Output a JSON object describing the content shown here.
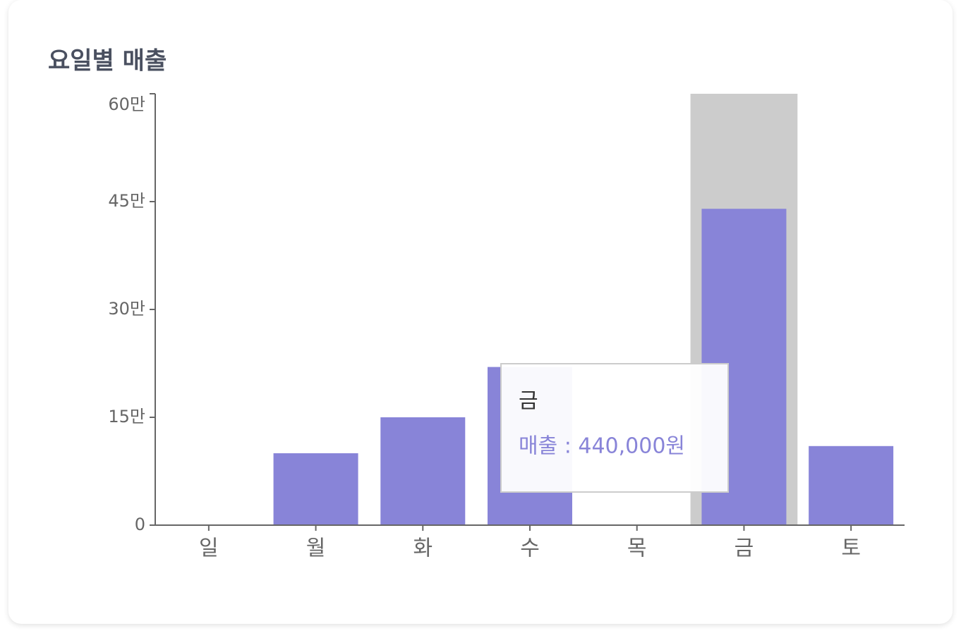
{
  "chart_data": {
    "type": "bar",
    "title": "요일별 매출",
    "categories": [
      "일",
      "월",
      "화",
      "수",
      "목",
      "금",
      "토"
    ],
    "values": [
      0,
      100000,
      150000,
      220000,
      0,
      440000,
      110000
    ],
    "color": "#8884d8",
    "ylim": [
      0,
      600000
    ],
    "yticks": [
      0,
      {
        "value": 150000,
        "label": "15만"
      },
      {
        "value": 300000,
        "label": "30만"
      },
      {
        "value": 450000,
        "label": "45만"
      },
      {
        "value": 600000,
        "label": "60만"
      }
    ],
    "grid": false,
    "tooltip": {
      "title": "금",
      "text": "매출 : 440,000원"
    }
  }
}
